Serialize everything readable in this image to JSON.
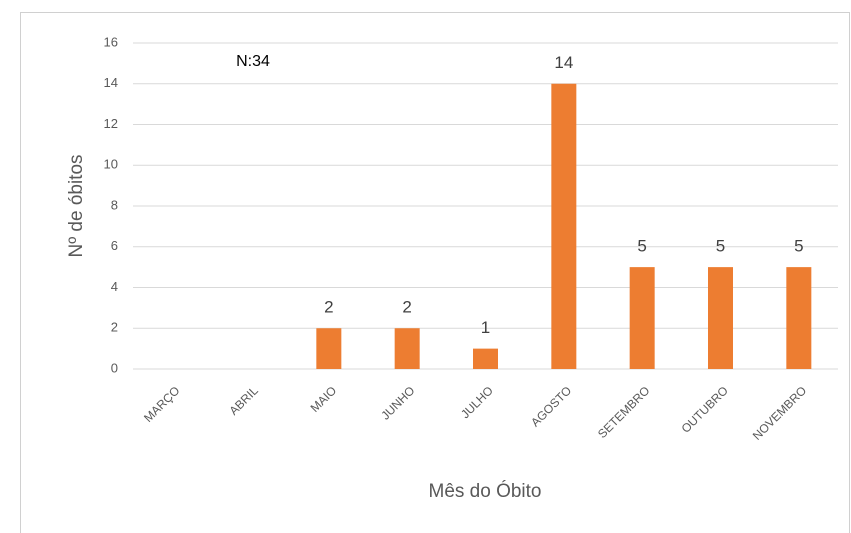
{
  "chart_data": {
    "type": "bar",
    "annotation": "N:34",
    "xlabel": "Mês do Óbito",
    "ylabel": "Nº de óbitos",
    "categories": [
      "MARÇO",
      "ABRIL",
      "MAIO",
      "JUNHO",
      "JULHO",
      "AGOSTO",
      "SETEMBRO",
      "OUTUBRO",
      "NOVEMBRO"
    ],
    "values": [
      0,
      0,
      2,
      2,
      1,
      14,
      5,
      5,
      5
    ],
    "value_labels": [
      null,
      null,
      "2",
      "2",
      "1",
      "14",
      "5",
      "5",
      "5"
    ],
    "color": "#ed7d31",
    "ylim": [
      0,
      16
    ],
    "yticks": [
      0,
      2,
      4,
      6,
      8,
      10,
      12,
      14,
      16
    ],
    "grid": true
  }
}
